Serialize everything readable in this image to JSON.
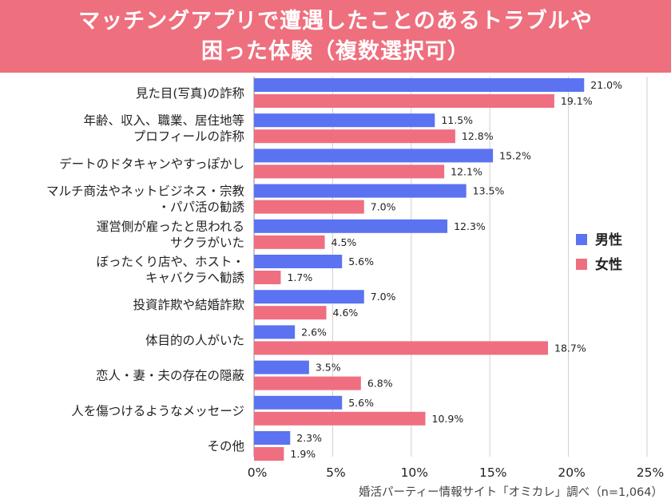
{
  "header": {
    "title_line1": "マッチングアプリで遭遇したことのあるトラブルや",
    "title_line2": "困った体験（複数選択可）"
  },
  "colors": {
    "male": "#5b73f0",
    "female": "#ef6e80",
    "header_bg": "#ee6f7e",
    "grid": "#cfcfcf"
  },
  "chart_data": {
    "type": "bar",
    "orientation": "horizontal",
    "title": "マッチングアプリで遭遇したことのあるトラブルや困った体験（複数選択可）",
    "categories": [
      [
        "見た目(写真)の詐称"
      ],
      [
        "年齢、収入、職業、居住地等",
        "プロフィールの詐称"
      ],
      [
        "デートのドタキャンやすっぽかし"
      ],
      [
        "マルチ商法やネットビジネス・宗教",
        "・パパ活の勧誘"
      ],
      [
        "運営側が雇ったと思われる",
        "サクラがいた"
      ],
      [
        "ぼったくり店や、ホスト・",
        "キャバクラへ勧誘"
      ],
      [
        "投資詐欺や結婚詐欺"
      ],
      [
        "体目的の人がいた"
      ],
      [
        "恋人・妻・夫の存在の隠蔽"
      ],
      [
        "人を傷つけるようなメッセージ"
      ],
      [
        "その他"
      ]
    ],
    "series": [
      {
        "name": "男性",
        "values": [
          21.0,
          11.5,
          15.2,
          13.5,
          12.3,
          5.6,
          7.0,
          2.6,
          3.5,
          5.6,
          2.3
        ]
      },
      {
        "name": "女性",
        "values": [
          19.1,
          12.8,
          12.1,
          7.0,
          4.5,
          1.7,
          4.6,
          18.7,
          6.8,
          10.9,
          1.9
        ]
      }
    ],
    "xlim": [
      0,
      25
    ],
    "xticks": [
      0,
      5,
      10,
      15,
      20,
      25
    ],
    "unit": "%",
    "grid": true,
    "legend_position": "right"
  },
  "source": "婚活パーティー情報サイト「オミカレ」調べ（n=1,064）"
}
